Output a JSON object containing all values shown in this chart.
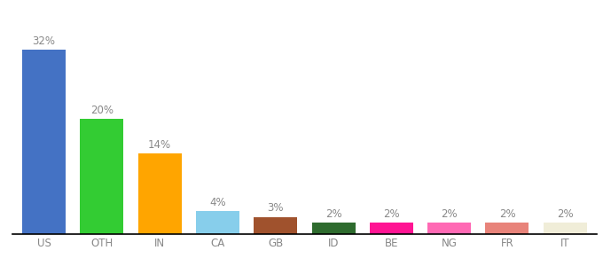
{
  "categories": [
    "US",
    "OTH",
    "IN",
    "CA",
    "GB",
    "ID",
    "BE",
    "NG",
    "FR",
    "IT"
  ],
  "values": [
    32,
    20,
    14,
    4,
    3,
    2,
    2,
    2,
    2,
    2
  ],
  "bar_colors": [
    "#4472C4",
    "#33CC33",
    "#FFA500",
    "#87CEEB",
    "#A0522D",
    "#2E6B2E",
    "#FF1493",
    "#FF69B4",
    "#E8837A",
    "#F0EDD8"
  ],
  "ylim": [
    0,
    37
  ],
  "background_color": "#ffffff",
  "label_fontsize": 8.5,
  "tick_fontsize": 8.5,
  "label_color": "#888888"
}
